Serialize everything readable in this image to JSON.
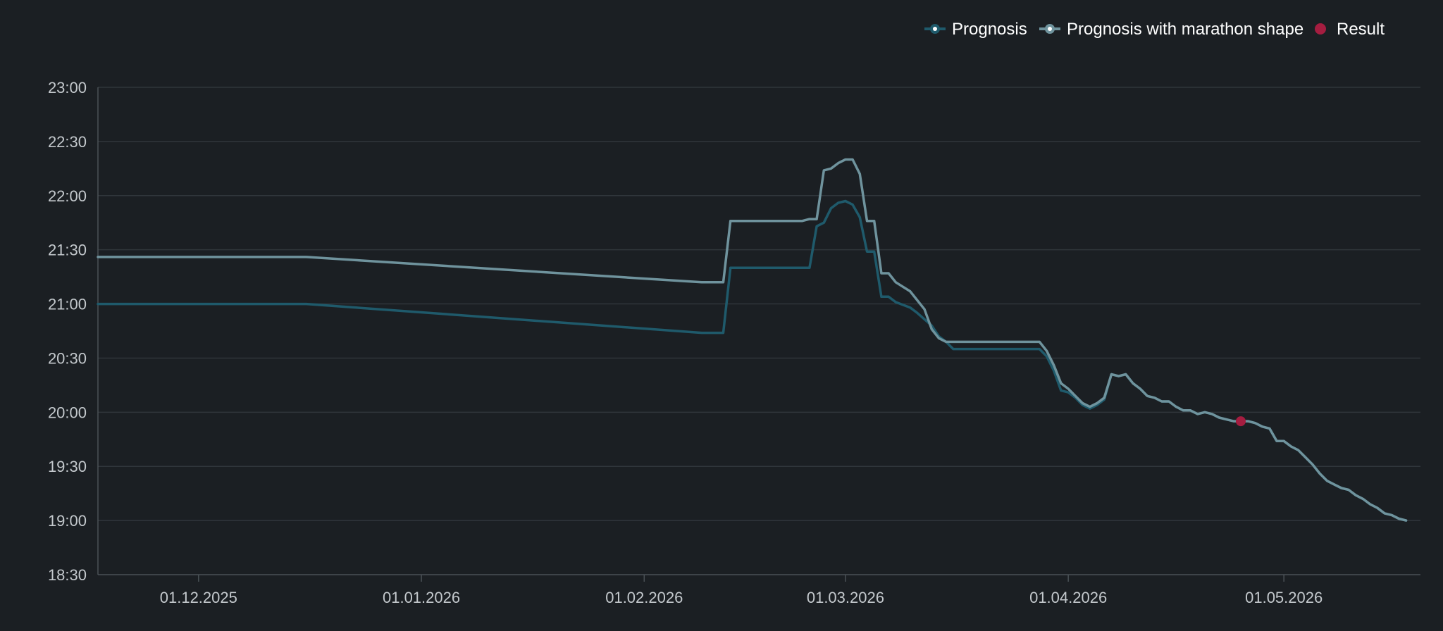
{
  "chart_data": {
    "type": "line",
    "title": "",
    "xlabel": "",
    "ylabel": "",
    "x_range": [
      "2025-11-17",
      "2026-05-20"
    ],
    "y_range_seconds": [
      1110,
      1380
    ],
    "xticks": [
      {
        "date": "2025-12-01",
        "label": "01.12.2025"
      },
      {
        "date": "2026-01-01",
        "label": "01.01.2026"
      },
      {
        "date": "2026-02-01",
        "label": "01.02.2026"
      },
      {
        "date": "2026-03-01",
        "label": "01.03.2026"
      },
      {
        "date": "2026-04-01",
        "label": "01.04.2026"
      },
      {
        "date": "2026-05-01",
        "label": "01.05.2026"
      }
    ],
    "yticks": [
      {
        "seconds": 1110,
        "label": "18:30"
      },
      {
        "seconds": 1140,
        "label": "19:00"
      },
      {
        "seconds": 1170,
        "label": "19:30"
      },
      {
        "seconds": 1200,
        "label": "20:00"
      },
      {
        "seconds": 1230,
        "label": "20:30"
      },
      {
        "seconds": 1260,
        "label": "21:00"
      },
      {
        "seconds": 1290,
        "label": "21:30"
      },
      {
        "seconds": 1320,
        "label": "22:00"
      },
      {
        "seconds": 1350,
        "label": "22:30"
      },
      {
        "seconds": 1380,
        "label": "23:00"
      }
    ],
    "grid": true,
    "legend_position": "top-right",
    "series": [
      {
        "name": "Prognosis",
        "color": "#1f5a6b",
        "points": [
          [
            "2025-11-17",
            1260
          ],
          [
            "2025-12-16",
            1260
          ],
          [
            "2026-02-09",
            1244
          ],
          [
            "2026-02-12",
            1244
          ],
          [
            "2026-02-13",
            1280
          ],
          [
            "2026-02-24",
            1280
          ],
          [
            "2026-02-25",
            1303
          ],
          [
            "2026-02-26",
            1305
          ],
          [
            "2026-02-27",
            1313
          ],
          [
            "2026-02-28",
            1316
          ],
          [
            "2026-03-01",
            1317
          ],
          [
            "2026-03-02",
            1315
          ],
          [
            "2026-03-03",
            1308
          ],
          [
            "2026-03-04",
            1289
          ],
          [
            "2026-03-05",
            1289
          ],
          [
            "2026-03-06",
            1264
          ],
          [
            "2026-03-07",
            1264
          ],
          [
            "2026-03-08",
            1261
          ],
          [
            "2026-03-10",
            1258
          ],
          [
            "2026-03-11",
            1255
          ],
          [
            "2026-03-13",
            1248
          ],
          [
            "2026-03-14",
            1242
          ],
          [
            "2026-03-15",
            1239
          ],
          [
            "2026-03-16",
            1235
          ],
          [
            "2026-03-28",
            1235
          ],
          [
            "2026-03-29",
            1231
          ],
          [
            "2026-03-30",
            1223
          ],
          [
            "2026-03-31",
            1212
          ],
          [
            "2026-04-01",
            1211
          ],
          [
            "2026-04-02",
            1208
          ],
          [
            "2026-04-03",
            1204
          ],
          [
            "2026-04-04",
            1202
          ],
          [
            "2026-04-05",
            1204
          ],
          [
            "2026-04-06",
            1207
          ],
          [
            "2026-04-07",
            1221
          ],
          [
            "2026-04-08",
            1220
          ],
          [
            "2026-04-09",
            1221
          ],
          [
            "2026-04-10",
            1216
          ],
          [
            "2026-04-11",
            1213
          ],
          [
            "2026-04-12",
            1209
          ],
          [
            "2026-04-13",
            1208
          ],
          [
            "2026-04-14",
            1206
          ],
          [
            "2026-04-15",
            1206
          ],
          [
            "2026-04-16",
            1203
          ],
          [
            "2026-04-17",
            1201
          ],
          [
            "2026-04-18",
            1201
          ],
          [
            "2026-04-19",
            1199
          ],
          [
            "2026-04-20",
            1200
          ],
          [
            "2026-04-21",
            1199
          ],
          [
            "2026-04-22",
            1197
          ],
          [
            "2026-04-23",
            1196
          ],
          [
            "2026-04-24",
            1195
          ],
          [
            "2026-04-25",
            1195
          ],
          [
            "2026-04-26",
            1195
          ],
          [
            "2026-04-27",
            1194
          ],
          [
            "2026-04-28",
            1192
          ],
          [
            "2026-04-29",
            1191
          ],
          [
            "2026-04-30",
            1184
          ],
          [
            "2026-05-01",
            1184
          ],
          [
            "2026-05-02",
            1181
          ],
          [
            "2026-05-03",
            1179
          ],
          [
            "2026-05-04",
            1175
          ],
          [
            "2026-05-05",
            1171
          ],
          [
            "2026-05-06",
            1166
          ],
          [
            "2026-05-07",
            1162
          ],
          [
            "2026-05-08",
            1160
          ],
          [
            "2026-05-09",
            1158
          ],
          [
            "2026-05-10",
            1157
          ],
          [
            "2026-05-11",
            1154
          ],
          [
            "2026-05-12",
            1152
          ],
          [
            "2026-05-13",
            1149
          ],
          [
            "2026-05-14",
            1147
          ],
          [
            "2026-05-15",
            1144
          ],
          [
            "2026-05-16",
            1143
          ],
          [
            "2026-05-17",
            1141
          ],
          [
            "2026-05-18",
            1140
          ]
        ]
      },
      {
        "name": "Prognosis with marathon shape",
        "color": "#6f939d",
        "points": [
          [
            "2025-11-17",
            1286
          ],
          [
            "2025-12-16",
            1286
          ],
          [
            "2026-02-09",
            1272
          ],
          [
            "2026-02-12",
            1272
          ],
          [
            "2026-02-13",
            1306
          ],
          [
            "2026-02-23",
            1306
          ],
          [
            "2026-02-24",
            1307
          ],
          [
            "2026-02-25",
            1307
          ],
          [
            "2026-02-26",
            1334
          ],
          [
            "2026-02-27",
            1335
          ],
          [
            "2026-02-28",
            1338
          ],
          [
            "2026-03-01",
            1340
          ],
          [
            "2026-03-02",
            1340
          ],
          [
            "2026-03-03",
            1332
          ],
          [
            "2026-03-04",
            1306
          ],
          [
            "2026-03-05",
            1306
          ],
          [
            "2026-03-06",
            1277
          ],
          [
            "2026-03-07",
            1277
          ],
          [
            "2026-03-08",
            1272
          ],
          [
            "2026-03-10",
            1267
          ],
          [
            "2026-03-12",
            1257
          ],
          [
            "2026-03-13",
            1246
          ],
          [
            "2026-03-14",
            1241
          ],
          [
            "2026-03-15",
            1239
          ],
          [
            "2026-03-28",
            1239
          ],
          [
            "2026-03-29",
            1234
          ],
          [
            "2026-03-30",
            1226
          ],
          [
            "2026-03-31",
            1216
          ],
          [
            "2026-04-01",
            1213
          ],
          [
            "2026-04-02",
            1209
          ],
          [
            "2026-04-03",
            1205
          ],
          [
            "2026-04-04",
            1203
          ],
          [
            "2026-04-05",
            1205
          ],
          [
            "2026-04-06",
            1208
          ],
          [
            "2026-04-07",
            1221
          ],
          [
            "2026-04-08",
            1220
          ],
          [
            "2026-04-09",
            1221
          ],
          [
            "2026-04-10",
            1216
          ],
          [
            "2026-04-11",
            1213
          ],
          [
            "2026-04-12",
            1209
          ],
          [
            "2026-04-13",
            1208
          ],
          [
            "2026-04-14",
            1206
          ],
          [
            "2026-04-15",
            1206
          ],
          [
            "2026-04-16",
            1203
          ],
          [
            "2026-04-17",
            1201
          ],
          [
            "2026-04-18",
            1201
          ],
          [
            "2026-04-19",
            1199
          ],
          [
            "2026-04-20",
            1200
          ],
          [
            "2026-04-21",
            1199
          ],
          [
            "2026-04-22",
            1197
          ],
          [
            "2026-04-23",
            1196
          ],
          [
            "2026-04-24",
            1195
          ],
          [
            "2026-04-25",
            1195
          ],
          [
            "2026-04-26",
            1195
          ],
          [
            "2026-04-27",
            1194
          ],
          [
            "2026-04-28",
            1192
          ],
          [
            "2026-04-29",
            1191
          ],
          [
            "2026-04-30",
            1184
          ],
          [
            "2026-05-01",
            1184
          ],
          [
            "2026-05-02",
            1181
          ],
          [
            "2026-05-03",
            1179
          ],
          [
            "2026-05-04",
            1175
          ],
          [
            "2026-05-05",
            1171
          ],
          [
            "2026-05-06",
            1166
          ],
          [
            "2026-05-07",
            1162
          ],
          [
            "2026-05-08",
            1160
          ],
          [
            "2026-05-09",
            1158
          ],
          [
            "2026-05-10",
            1157
          ],
          [
            "2026-05-11",
            1154
          ],
          [
            "2026-05-12",
            1152
          ],
          [
            "2026-05-13",
            1149
          ],
          [
            "2026-05-14",
            1147
          ],
          [
            "2026-05-15",
            1144
          ],
          [
            "2026-05-16",
            1143
          ],
          [
            "2026-05-17",
            1141
          ],
          [
            "2026-05-18",
            1140
          ]
        ]
      }
    ],
    "result": {
      "name": "Result",
      "color": "#a51d40",
      "date": "2026-04-25",
      "seconds": 1195
    }
  },
  "legend": {
    "prognosis": "Prognosis",
    "marathon": "Prognosis with marathon shape",
    "result": "Result"
  }
}
